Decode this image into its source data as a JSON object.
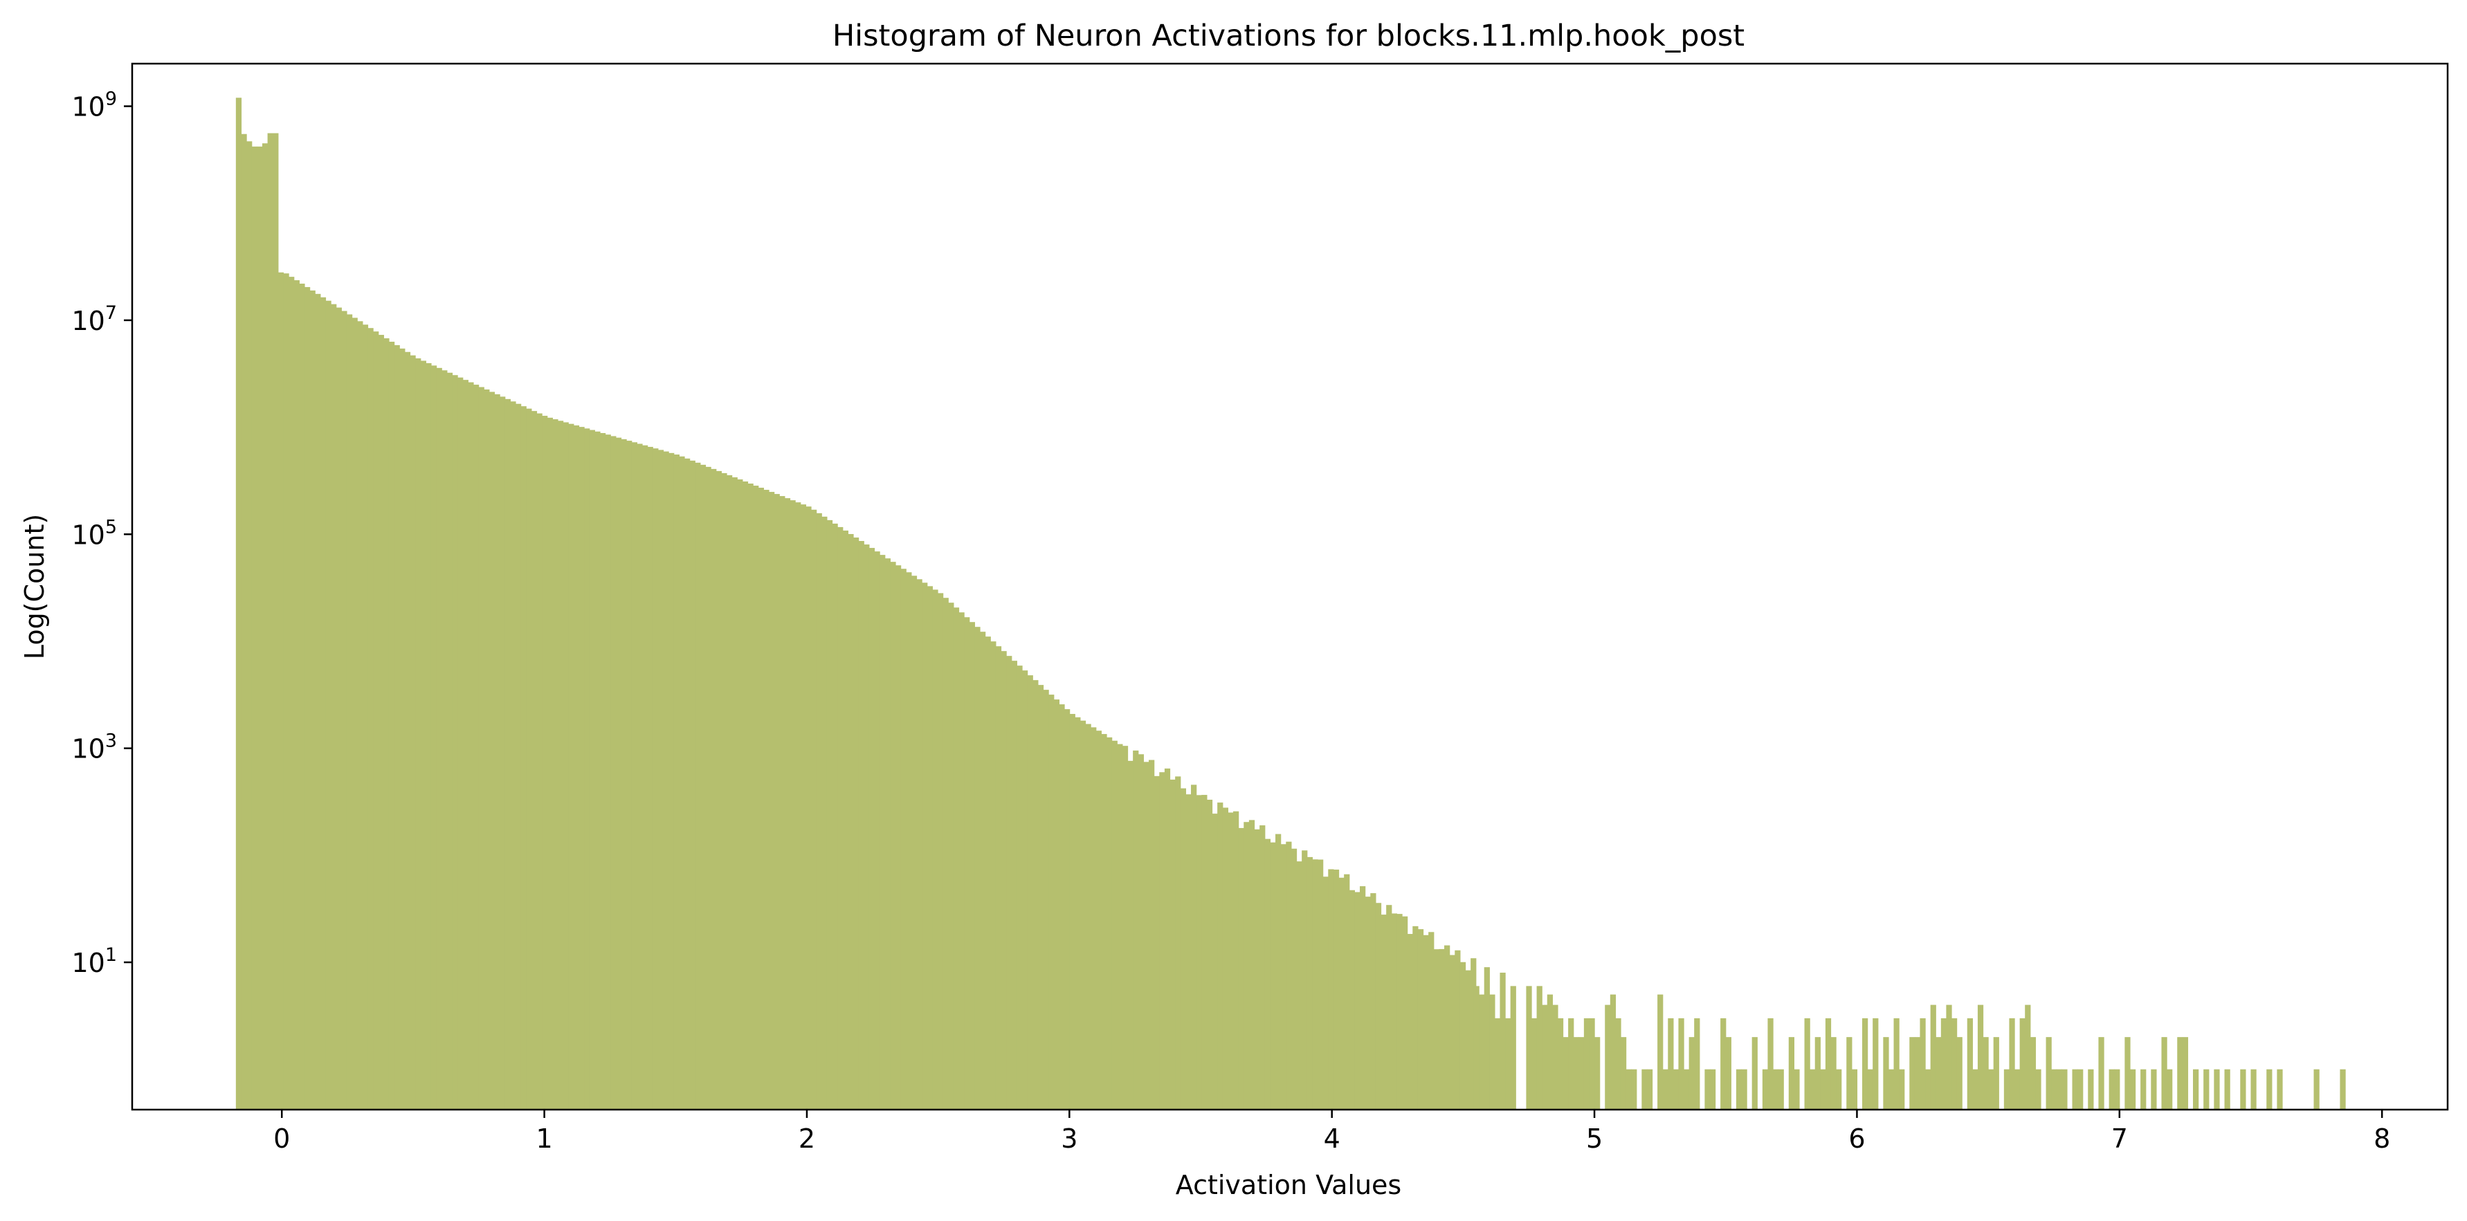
{
  "chart_data": {
    "type": "bar",
    "title": "Histogram of Neuron Activations for blocks.11.mlp.hook_post",
    "xlabel": "Activation Values",
    "ylabel": "Log(Count)",
    "x_scale": "linear",
    "y_scale": "log",
    "xlim": [
      -0.57,
      8.25
    ],
    "ylim": [
      0.42,
      2500000000
    ],
    "grid": false,
    "bar_color": "#b5bf6e",
    "bin_width": 0.0201,
    "x_ticks": [
      {
        "value": 0,
        "label": "0"
      },
      {
        "value": 1,
        "label": "1"
      },
      {
        "value": 2,
        "label": "2"
      },
      {
        "value": 3,
        "label": "3"
      },
      {
        "value": 4,
        "label": "4"
      },
      {
        "value": 5,
        "label": "5"
      },
      {
        "value": 6,
        "label": "6"
      },
      {
        "value": 7,
        "label": "7"
      },
      {
        "value": 8,
        "label": "8"
      }
    ],
    "y_ticks": [
      {
        "value": 10,
        "base": "10",
        "exp": "1"
      },
      {
        "value": 1000,
        "base": "10",
        "exp": "3"
      },
      {
        "value": 100000,
        "base": "10",
        "exp": "5"
      },
      {
        "value": 10000000,
        "base": "10",
        "exp": "7"
      },
      {
        "value": 1000000000,
        "base": "10",
        "exp": "9"
      }
    ],
    "key_bins": [
      {
        "x": -0.165,
        "count": 1200000000
      },
      {
        "x": -0.145,
        "count": 550000000
      },
      {
        "x": -0.1,
        "count": 420000000
      },
      {
        "x": -0.02,
        "count": 560000000
      },
      {
        "x": 0.0,
        "count": 28000000
      },
      {
        "x": 0.5,
        "count": 4500000
      },
      {
        "x": 1.0,
        "count": 1250000
      },
      {
        "x": 1.5,
        "count": 550000
      },
      {
        "x": 2.0,
        "count": 180000
      },
      {
        "x": 2.5,
        "count": 28000
      },
      {
        "x": 3.0,
        "count": 2100
      },
      {
        "x": 3.5,
        "count": 350
      },
      {
        "x": 4.0,
        "count": 70
      },
      {
        "x": 4.5,
        "count": 10
      }
    ],
    "sparse_bins": [
      {
        "x": 4.55,
        "count": 6
      },
      {
        "x": 4.57,
        "count": 5
      },
      {
        "x": 4.59,
        "count": 9
      },
      {
        "x": 4.61,
        "count": 5
      },
      {
        "x": 4.63,
        "count": 3
      },
      {
        "x": 4.65,
        "count": 8
      },
      {
        "x": 4.67,
        "count": 3
      },
      {
        "x": 4.69,
        "count": 6
      },
      {
        "x": 4.75,
        "count": 6
      },
      {
        "x": 4.77,
        "count": 3
      },
      {
        "x": 4.79,
        "count": 6
      },
      {
        "x": 4.81,
        "count": 4
      },
      {
        "x": 4.83,
        "count": 5
      },
      {
        "x": 4.85,
        "count": 4
      },
      {
        "x": 4.87,
        "count": 3
      },
      {
        "x": 4.89,
        "count": 2
      },
      {
        "x": 4.91,
        "count": 3
      },
      {
        "x": 4.93,
        "count": 2
      },
      {
        "x": 4.95,
        "count": 2
      },
      {
        "x": 4.97,
        "count": 3
      },
      {
        "x": 4.99,
        "count": 3
      },
      {
        "x": 5.01,
        "count": 2
      },
      {
        "x": 5.05,
        "count": 4
      },
      {
        "x": 5.07,
        "count": 5
      },
      {
        "x": 5.09,
        "count": 3
      },
      {
        "x": 5.11,
        "count": 2
      },
      {
        "x": 5.13,
        "count": 1
      },
      {
        "x": 5.15,
        "count": 1
      },
      {
        "x": 5.19,
        "count": 1
      },
      {
        "x": 5.21,
        "count": 1
      },
      {
        "x": 5.25,
        "count": 5
      },
      {
        "x": 5.27,
        "count": 1
      },
      {
        "x": 5.29,
        "count": 3
      },
      {
        "x": 5.31,
        "count": 1
      },
      {
        "x": 5.33,
        "count": 3
      },
      {
        "x": 5.35,
        "count": 1
      },
      {
        "x": 5.37,
        "count": 2
      },
      {
        "x": 5.39,
        "count": 3
      },
      {
        "x": 5.43,
        "count": 1
      },
      {
        "x": 5.45,
        "count": 1
      },
      {
        "x": 5.49,
        "count": 3
      },
      {
        "x": 5.51,
        "count": 2
      },
      {
        "x": 5.55,
        "count": 1
      },
      {
        "x": 5.57,
        "count": 1
      },
      {
        "x": 5.61,
        "count": 2
      },
      {
        "x": 5.65,
        "count": 1
      },
      {
        "x": 5.67,
        "count": 3
      },
      {
        "x": 5.69,
        "count": 1
      },
      {
        "x": 5.71,
        "count": 1
      },
      {
        "x": 5.75,
        "count": 2
      },
      {
        "x": 5.77,
        "count": 1
      },
      {
        "x": 5.81,
        "count": 3
      },
      {
        "x": 5.83,
        "count": 1
      },
      {
        "x": 5.85,
        "count": 2
      },
      {
        "x": 5.87,
        "count": 1
      },
      {
        "x": 5.89,
        "count": 3
      },
      {
        "x": 5.91,
        "count": 2
      },
      {
        "x": 5.93,
        "count": 1
      },
      {
        "x": 5.97,
        "count": 2
      },
      {
        "x": 5.99,
        "count": 1
      },
      {
        "x": 6.03,
        "count": 3
      },
      {
        "x": 6.05,
        "count": 1
      },
      {
        "x": 6.07,
        "count": 3
      },
      {
        "x": 6.11,
        "count": 2
      },
      {
        "x": 6.13,
        "count": 1
      },
      {
        "x": 6.15,
        "count": 3
      },
      {
        "x": 6.17,
        "count": 1
      },
      {
        "x": 6.21,
        "count": 2
      },
      {
        "x": 6.23,
        "count": 2
      },
      {
        "x": 6.25,
        "count": 3
      },
      {
        "x": 6.27,
        "count": 1
      },
      {
        "x": 6.29,
        "count": 4
      },
      {
        "x": 6.31,
        "count": 2
      },
      {
        "x": 6.33,
        "count": 3
      },
      {
        "x": 6.35,
        "count": 4
      },
      {
        "x": 6.37,
        "count": 3
      },
      {
        "x": 6.39,
        "count": 2
      },
      {
        "x": 6.43,
        "count": 3
      },
      {
        "x": 6.45,
        "count": 1
      },
      {
        "x": 6.47,
        "count": 4
      },
      {
        "x": 6.49,
        "count": 2
      },
      {
        "x": 6.51,
        "count": 1
      },
      {
        "x": 6.53,
        "count": 2
      },
      {
        "x": 6.57,
        "count": 1
      },
      {
        "x": 6.59,
        "count": 3
      },
      {
        "x": 6.61,
        "count": 1
      },
      {
        "x": 6.63,
        "count": 3
      },
      {
        "x": 6.65,
        "count": 4
      },
      {
        "x": 6.67,
        "count": 2
      },
      {
        "x": 6.69,
        "count": 1
      },
      {
        "x": 6.73,
        "count": 2
      },
      {
        "x": 6.75,
        "count": 1
      },
      {
        "x": 6.77,
        "count": 1
      },
      {
        "x": 6.79,
        "count": 1
      },
      {
        "x": 6.83,
        "count": 1
      },
      {
        "x": 6.85,
        "count": 1
      },
      {
        "x": 6.89,
        "count": 1
      },
      {
        "x": 6.93,
        "count": 2
      },
      {
        "x": 6.97,
        "count": 1
      },
      {
        "x": 6.99,
        "count": 1
      },
      {
        "x": 7.03,
        "count": 2
      },
      {
        "x": 7.05,
        "count": 1
      },
      {
        "x": 7.09,
        "count": 1
      },
      {
        "x": 7.13,
        "count": 1
      },
      {
        "x": 7.17,
        "count": 2
      },
      {
        "x": 7.19,
        "count": 1
      },
      {
        "x": 7.23,
        "count": 2
      },
      {
        "x": 7.25,
        "count": 2
      },
      {
        "x": 7.29,
        "count": 1
      },
      {
        "x": 7.33,
        "count": 1
      },
      {
        "x": 7.37,
        "count": 1
      },
      {
        "x": 7.41,
        "count": 1
      },
      {
        "x": 7.47,
        "count": 1
      },
      {
        "x": 7.51,
        "count": 1
      },
      {
        "x": 7.57,
        "count": 1
      },
      {
        "x": 7.61,
        "count": 1
      },
      {
        "x": 7.75,
        "count": 1
      },
      {
        "x": 7.85,
        "count": 1
      }
    ]
  }
}
